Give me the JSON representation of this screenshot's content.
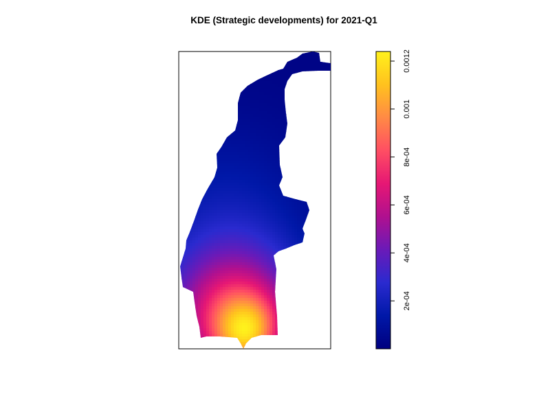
{
  "chart_data": {
    "type": "heatmap",
    "title": "KDE (Strategic developments) for 2021-Q1",
    "xlabel": "",
    "ylabel": "",
    "colorbar": {
      "min": 0,
      "max": 0.00124,
      "ticks": [
        {
          "value": 0.0002,
          "label": "2e-04"
        },
        {
          "value": 0.0004,
          "label": "4e-04"
        },
        {
          "value": 0.0006,
          "label": "6e-04"
        },
        {
          "value": 0.0008,
          "label": "8e-04"
        },
        {
          "value": 0.001,
          "label": "0.001"
        },
        {
          "value": 0.0012,
          "label": "0.0012"
        }
      ],
      "palette": [
        "#00007F",
        "#0018A8",
        "#2A2ACF",
        "#6A1AB8",
        "#B0108F",
        "#E61774",
        "#FF4E63",
        "#FF8A45",
        "#FFC21E",
        "#FFF11C"
      ],
      "placement": "right"
    },
    "density_estimate": {
      "peak_location": "south",
      "peak_value": 0.00124,
      "background_value": 2e-05
    },
    "grid": false,
    "legend": "colorbar-right"
  }
}
